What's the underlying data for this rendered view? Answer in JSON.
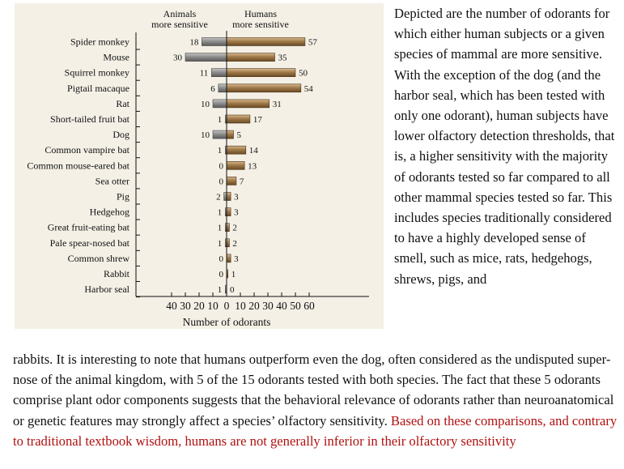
{
  "chart_data": {
    "type": "bar",
    "orientation": "horizontal-diverging",
    "header_left_line1": "Animals",
    "header_left_line2": "more sensitive",
    "header_right_line1": "Humans",
    "header_right_line2": "more sensitive",
    "xlabel": "Number of odorants",
    "xlim": [
      -40,
      60
    ],
    "xticks": [
      -40,
      -30,
      -20,
      -10,
      0,
      10,
      20,
      30,
      40,
      50,
      60
    ],
    "xtick_labels": [
      "40",
      "30",
      "20",
      "10",
      "0",
      "10",
      "20",
      "30",
      "40",
      "50",
      "60"
    ],
    "colors": {
      "animals": "#8e8e8e",
      "humans": "#a07a4a",
      "panel_bg": "#f4f0e6"
    },
    "categories": [
      "Spider monkey",
      "Mouse",
      "Squirrel monkey",
      "Pigtail macaque",
      "Rat",
      "Short-tailed fruit bat",
      "Dog",
      "Common vampire bat",
      "Common mouse-eared bat",
      "Sea otter",
      "Pig",
      "Hedgehog",
      "Great fruit-eating bat",
      "Pale spear-nosed bat",
      "Common shrew",
      "Rabbit",
      "Harbor seal"
    ],
    "series": [
      {
        "name": "Animals more sensitive",
        "values": [
          18,
          30,
          11,
          6,
          10,
          1,
          10,
          1,
          0,
          0,
          2,
          1,
          1,
          1,
          0,
          0,
          1
        ]
      },
      {
        "name": "Humans more sensitive",
        "values": [
          57,
          35,
          50,
          54,
          31,
          17,
          5,
          14,
          13,
          7,
          3,
          3,
          2,
          2,
          3,
          1,
          0
        ]
      }
    ]
  },
  "text": {
    "side_paragraph": "Depicted are the number of odorants for which either human subjects or a given species of mammal are more sensitive. With the exception of the dog (and the harbor seal, which has been tested with only one odorant), human subjects have lower olfactory detection thresholds, that is, a higher sensitivity with the majority of odorants tested so far compared to all other mammal species tested so far. This includes species traditionally considered to have a highly developed sense of smell, such as mice, rats, hedgehogs, shrews, pigs, and",
    "bottom_paragraph": "rabbits. It is interesting to note that humans outperform even the dog, often considered as the undisputed super-nose of the animal kingdom, with 5 of the 15 odorants tested with both species. The fact that these 5 odorants comprise plant odor components suggests that the behavioral relevance of odorants rather than neuroanatomical or genetic features may strongly affect a species’ olfactory sensitivity.",
    "bottom_highlight": "Based on these comparisons, and contrary to traditional textbook wisdom, humans are not generally inferior in their olfactory sensitivity"
  }
}
